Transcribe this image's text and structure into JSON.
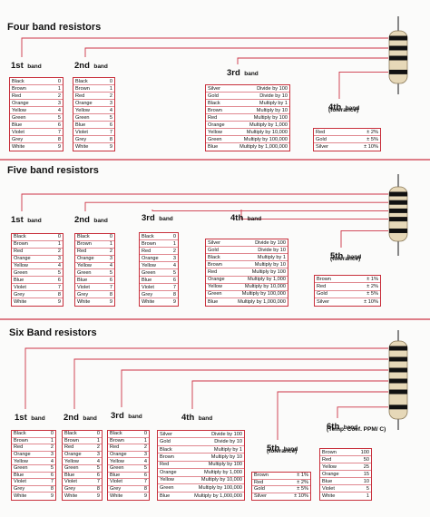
{
  "sections": [
    {
      "title": "Four band resistors",
      "bands": [
        {
          "name": "1st",
          "word": "band",
          "rows": [
            [
              "Black",
              0
            ],
            [
              "Brown",
              1
            ],
            [
              "Red",
              2
            ],
            [
              "Orange",
              3
            ],
            [
              "Yellow",
              4
            ],
            [
              "Green",
              5
            ],
            [
              "Blue",
              6
            ],
            [
              "Violet",
              7
            ],
            [
              "Grey",
              8
            ],
            [
              "White",
              9
            ]
          ]
        },
        {
          "name": "2nd",
          "word": "band",
          "rows": [
            [
              "Black",
              0
            ],
            [
              "Brown",
              1
            ],
            [
              "Red",
              2
            ],
            [
              "Orange",
              3
            ],
            [
              "Yellow",
              4
            ],
            [
              "Green",
              5
            ],
            [
              "Blue",
              6
            ],
            [
              "Violet",
              7
            ],
            [
              "Grey",
              8
            ],
            [
              "White",
              9
            ]
          ]
        },
        {
          "name": "3rd",
          "word": "band",
          "rows": [
            [
              "Silver",
              "Divide by 100"
            ],
            [
              "Gold",
              "Divide by 10"
            ],
            [
              "Black",
              "Multiply by 1"
            ],
            [
              "Brown",
              "Multiply by 10"
            ],
            [
              "Red",
              "Multiply by 100"
            ],
            [
              "Orange",
              "Multiply by 1,000"
            ],
            [
              "Yellow",
              "Multiply by 10,000"
            ],
            [
              "Green",
              "Multiply by 100,000"
            ],
            [
              "Blue",
              "Multiply by 1,000,000"
            ]
          ]
        },
        {
          "name": "4th",
          "word": "band",
          "note": "(tolerance)",
          "rows": [
            [
              "Red",
              "± 2%"
            ],
            [
              "Gold",
              "± 5%"
            ],
            [
              "Silver",
              "± 10%"
            ]
          ]
        }
      ]
    },
    {
      "title": "Five band resistors",
      "bands": [
        {
          "name": "1st",
          "word": "band",
          "rows": [
            [
              "Black",
              0
            ],
            [
              "Brown",
              1
            ],
            [
              "Red",
              2
            ],
            [
              "Orange",
              3
            ],
            [
              "Yellow",
              4
            ],
            [
              "Green",
              5
            ],
            [
              "Blue",
              6
            ],
            [
              "Violet",
              7
            ],
            [
              "Grey",
              8
            ],
            [
              "White",
              9
            ]
          ]
        },
        {
          "name": "2nd",
          "word": "band",
          "rows": [
            [
              "Black",
              0
            ],
            [
              "Brown",
              1
            ],
            [
              "Red",
              2
            ],
            [
              "Orange",
              3
            ],
            [
              "Yellow",
              4
            ],
            [
              "Green",
              5
            ],
            [
              "Blue",
              6
            ],
            [
              "Violet",
              7
            ],
            [
              "Grey",
              8
            ],
            [
              "White",
              9
            ]
          ]
        },
        {
          "name": "3rd",
          "word": "band",
          "rows": [
            [
              "Black",
              0
            ],
            [
              "Brown",
              1
            ],
            [
              "Red",
              2
            ],
            [
              "Orange",
              3
            ],
            [
              "Yellow",
              4
            ],
            [
              "Green",
              5
            ],
            [
              "Blue",
              6
            ],
            [
              "Violet",
              7
            ],
            [
              "Grey",
              8
            ],
            [
              "White",
              9
            ]
          ]
        },
        {
          "name": "4th",
          "word": "band",
          "rows": [
            [
              "Silver",
              "Divide by 100"
            ],
            [
              "Gold",
              "Divide by 10"
            ],
            [
              "Black",
              "Multiply by 1"
            ],
            [
              "Brown",
              "Multiply by 10"
            ],
            [
              "Red",
              "Multiply by 100"
            ],
            [
              "Orange",
              "Multiply by 1,000"
            ],
            [
              "Yellow",
              "Multiply by 10,000"
            ],
            [
              "Green",
              "Multiply by 100,000"
            ],
            [
              "Blue",
              "Multiply by 1,000,000"
            ]
          ]
        },
        {
          "name": "5th",
          "word": "band",
          "note": "(tolerance)",
          "rows": [
            [
              "Brown",
              "± 1%"
            ],
            [
              "Red",
              "± 2%"
            ],
            [
              "Gold",
              "± 5%"
            ],
            [
              "Silver",
              "± 10%"
            ]
          ]
        }
      ]
    },
    {
      "title": "Six Band resistors",
      "bands": [
        {
          "name": "1st",
          "word": "band",
          "rows": [
            [
              "Black",
              0
            ],
            [
              "Brown",
              1
            ],
            [
              "Red",
              2
            ],
            [
              "Orange",
              3
            ],
            [
              "Yellow",
              4
            ],
            [
              "Green",
              5
            ],
            [
              "Blue",
              6
            ],
            [
              "Violet",
              7
            ],
            [
              "Grey",
              8
            ],
            [
              "White",
              9
            ]
          ]
        },
        {
          "name": "2nd",
          "word": "band",
          "rows": [
            [
              "Black",
              0
            ],
            [
              "Brown",
              1
            ],
            [
              "Red",
              2
            ],
            [
              "Orange",
              3
            ],
            [
              "Yellow",
              4
            ],
            [
              "Green",
              5
            ],
            [
              "Blue",
              6
            ],
            [
              "Violet",
              7
            ],
            [
              "Grey",
              8
            ],
            [
              "White",
              9
            ]
          ]
        },
        {
          "name": "3rd",
          "word": "band",
          "rows": [
            [
              "Black",
              0
            ],
            [
              "Brown",
              1
            ],
            [
              "Red",
              2
            ],
            [
              "Orange",
              3
            ],
            [
              "Yellow",
              4
            ],
            [
              "Green",
              5
            ],
            [
              "Blue",
              6
            ],
            [
              "Violet",
              7
            ],
            [
              "Grey",
              8
            ],
            [
              "White",
              9
            ]
          ]
        },
        {
          "name": "4th",
          "word": "band",
          "rows": [
            [
              "Silver",
              "Divide by 100"
            ],
            [
              "Gold",
              "Divide by 10"
            ],
            [
              "Black",
              "Multiply by 1"
            ],
            [
              "Brown",
              "Multiply by 10"
            ],
            [
              "Red",
              "Multiply by 100"
            ],
            [
              "Orange",
              "Multiply by 1,000"
            ],
            [
              "Yellow",
              "Multiply by 10,000"
            ],
            [
              "Green",
              "Multiply by 100,000"
            ],
            [
              "Blue",
              "Multiply by 1,000,000"
            ]
          ]
        },
        {
          "name": "5th",
          "word": "band",
          "note": "(tolerance)",
          "rows": [
            [
              "Brown",
              "± 1%"
            ],
            [
              "Red",
              "± 2%"
            ],
            [
              "Gold",
              "± 5%"
            ],
            [
              "Silver",
              "± 10%"
            ]
          ]
        },
        {
          "name": "6th",
          "word": "band",
          "note": "(Temp. Coef. PPM/ C)",
          "rows": [
            [
              "Brown",
              100
            ],
            [
              "Red",
              50
            ],
            [
              "Yellow",
              25
            ],
            [
              "Orange",
              15
            ],
            [
              "Blue",
              10
            ],
            [
              "Violet",
              5
            ],
            [
              "White",
              1
            ]
          ]
        }
      ]
    }
  ]
}
